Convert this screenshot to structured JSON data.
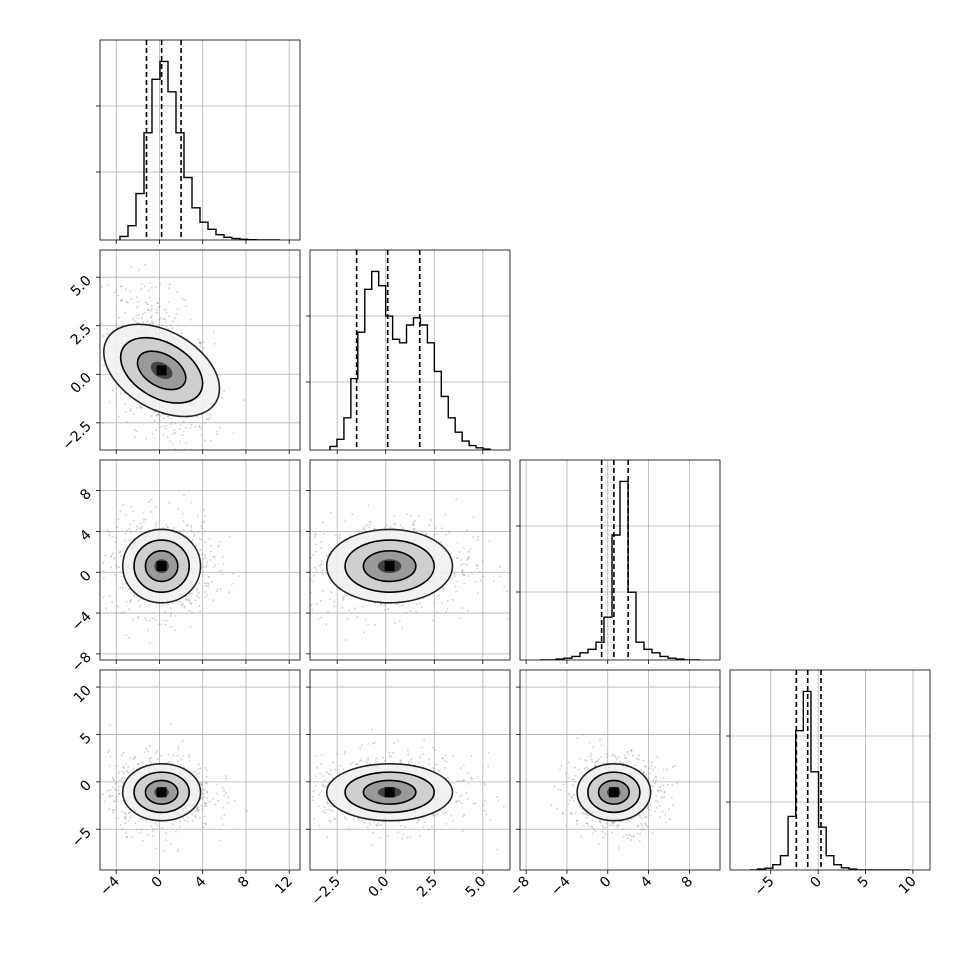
{
  "chart_data": {
    "type": "corner",
    "variables": [
      {
        "xticks": [
          -4,
          0,
          4,
          8,
          12
        ],
        "xtick_labels": [
          "−4",
          "0",
          "4",
          "8",
          "12"
        ],
        "range": [
          -5.5,
          13.0
        ]
      },
      {
        "xticks": [
          -2.5,
          0.0,
          2.5,
          5.0
        ],
        "xtick_labels": [
          "−2.5",
          "0.0",
          "2.5",
          "5.0"
        ],
        "range": [
          -3.9,
          6.4
        ]
      },
      {
        "xticks": [
          -8,
          -4,
          0,
          4,
          8
        ],
        "xtick_labels": [
          "−8",
          "−4",
          "0",
          "4",
          "8"
        ],
        "range": [
          -8.6,
          11.0
        ]
      },
      {
        "xticks": [
          -5,
          0,
          5,
          10
        ],
        "xtick_labels": [
          "−5",
          "0",
          "5",
          "10"
        ],
        "range": [
          -9.3,
          11.8
        ]
      }
    ],
    "row_ytick_labels": {
      "1": {
        "ticks": [
          -2.5,
          0.0,
          2.5,
          5.0
        ],
        "labels": [
          "−2.5",
          "0.0",
          "2.5",
          "5.0"
        ]
      },
      "2": {
        "ticks": [
          -8,
          -4,
          0,
          4,
          8
        ],
        "labels": [
          "−8",
          "−4",
          "0",
          "4",
          "8"
        ]
      },
      "3": {
        "ticks": [
          -5,
          0,
          5,
          10
        ],
        "labels": [
          "−5",
          "0",
          "5",
          "10"
        ]
      }
    },
    "histograms": [
      {
        "quantiles": [
          -1.2,
          0.2,
          2.0
        ],
        "counts": [
          0.02,
          0.08,
          0.26,
          0.6,
          0.9,
          1.0,
          0.83,
          0.6,
          0.35,
          0.18,
          0.1,
          0.06,
          0.03,
          0.015,
          0.008,
          0.004,
          0.002,
          0,
          0,
          0
        ]
      },
      {
        "quantiles": [
          -1.5,
          0.1,
          1.75
        ],
        "counts": [
          0.02,
          0.06,
          0.18,
          0.4,
          0.66,
          0.9,
          1.0,
          0.92,
          0.75,
          0.62,
          0.6,
          0.7,
          0.74,
          0.7,
          0.6,
          0.44,
          0.3,
          0.18,
          0.1,
          0.05,
          0.025,
          0.012,
          0.005
        ]
      },
      {
        "quantiles": [
          -0.6,
          0.6,
          2.0
        ],
        "counts": [
          0,
          0,
          0.005,
          0.01,
          0.02,
          0.04,
          0.06,
          0.1,
          0.24,
          0.7,
          1.0,
          0.38,
          0.1,
          0.06,
          0.04,
          0.02,
          0.01,
          0.005,
          0,
          0
        ]
      },
      {
        "quantiles": [
          -2.3,
          -1.1,
          0.3
        ],
        "counts": [
          0,
          0.005,
          0.01,
          0.03,
          0.08,
          0.3,
          0.78,
          1.0,
          0.55,
          0.24,
          0.08,
          0.03,
          0.012,
          0.005,
          0,
          0,
          0,
          0,
          0,
          0,
          0
        ]
      }
    ],
    "pairs": [
      {
        "row": 1,
        "col": 0,
        "cx": 0.2,
        "cy": 0.2,
        "sx": 1.5,
        "sy": 1.35,
        "rho": -0.45
      },
      {
        "row": 2,
        "col": 0,
        "cx": 0.2,
        "cy": 0.6,
        "sx": 1.5,
        "sy": 1.5,
        "rho": 0.0
      },
      {
        "row": 2,
        "col": 1,
        "cx": 0.2,
        "cy": 0.6,
        "sx": 1.35,
        "sy": 1.5,
        "rho": 0.0
      },
      {
        "row": 3,
        "col": 0,
        "cx": 0.2,
        "cy": -1.1,
        "sx": 1.5,
        "sy": 1.25,
        "rho": 0.0
      },
      {
        "row": 3,
        "col": 1,
        "cx": 0.2,
        "cy": -1.1,
        "sx": 1.35,
        "sy": 1.25,
        "rho": 0.0
      },
      {
        "row": 3,
        "col": 2,
        "cx": 0.6,
        "cy": -1.1,
        "sx": 1.5,
        "sy": 1.25,
        "rho": 0.0
      }
    ]
  }
}
